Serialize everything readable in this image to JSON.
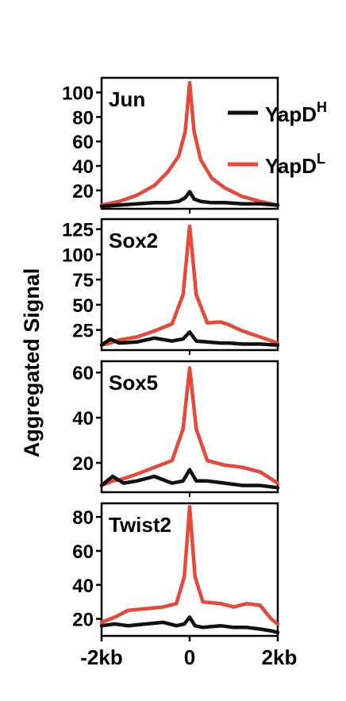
{
  "figure": {
    "ylabel": "Aggregated Signal",
    "x_ticks": [
      "-2kb",
      "0",
      "2kb"
    ],
    "legend": [
      {
        "base": "YapD",
        "sup": "H",
        "color": "#111111"
      },
      {
        "base": "YapD",
        "sup": "L",
        "color": "#e8473a"
      }
    ]
  },
  "chart_data": [
    {
      "type": "line",
      "title": "Jun",
      "x": [
        -2,
        -1.6,
        -1.2,
        -0.8,
        -0.5,
        -0.25,
        -0.1,
        0,
        0.1,
        0.25,
        0.5,
        0.8,
        1.2,
        1.6,
        2
      ],
      "ylim": [
        5,
        112
      ],
      "yticks": [
        20,
        40,
        60,
        80,
        100
      ],
      "series": [
        {
          "name": "YapDᴴ",
          "color": "#111111",
          "values": [
            7,
            8,
            9,
            10,
            10,
            11,
            14,
            19,
            13,
            11,
            10,
            10,
            9,
            9,
            8
          ]
        },
        {
          "name": "YapDᴸ",
          "color": "#e8473a",
          "values": [
            8,
            11,
            16,
            24,
            35,
            48,
            68,
            108,
            68,
            45,
            30,
            22,
            15,
            11,
            8
          ]
        }
      ]
    },
    {
      "type": "line",
      "title": "Sox2",
      "x": [
        -2,
        -1.8,
        -1.6,
        -1.2,
        -0.8,
        -0.4,
        -0.15,
        0,
        0.15,
        0.4,
        0.7,
        0.9,
        1.2,
        1.6,
        2
      ],
      "ylim": [
        5,
        135
      ],
      "yticks": [
        25,
        50,
        75,
        100,
        125
      ],
      "series": [
        {
          "name": "YapDᴴ",
          "color": "#111111",
          "values": [
            10,
            16,
            12,
            13,
            17,
            14,
            16,
            23,
            14,
            13,
            12,
            12,
            11,
            11,
            10
          ]
        },
        {
          "name": "YapDᴸ",
          "color": "#e8473a",
          "values": [
            10,
            12,
            15,
            18,
            24,
            31,
            60,
            128,
            60,
            32,
            33,
            30,
            24,
            18,
            12
          ]
        }
      ]
    },
    {
      "type": "line",
      "title": "Sox5",
      "x": [
        -2,
        -1.75,
        -1.5,
        -1.2,
        -0.8,
        -0.4,
        -0.15,
        0,
        0.15,
        0.4,
        0.8,
        1.2,
        1.6,
        2
      ],
      "ylim": [
        7,
        65
      ],
      "yticks": [
        20,
        40,
        60
      ],
      "series": [
        {
          "name": "YapDᴴ",
          "color": "#111111",
          "values": [
            10,
            14,
            11,
            12,
            14,
            11,
            12,
            17,
            12,
            12,
            11,
            10,
            10,
            9
          ]
        },
        {
          "name": "YapDᴸ",
          "color": "#e8473a",
          "values": [
            10,
            12,
            13,
            15,
            18,
            21,
            35,
            62,
            35,
            21,
            19,
            18,
            16,
            11
          ]
        }
      ]
    },
    {
      "type": "line",
      "title": "Twist2",
      "x": [
        -2,
        -1.7,
        -1.4,
        -1.0,
        -0.6,
        -0.3,
        -0.12,
        0,
        0.12,
        0.3,
        0.7,
        1.0,
        1.3,
        1.6,
        1.85,
        2
      ],
      "ylim": [
        10,
        88
      ],
      "yticks": [
        20,
        40,
        60,
        80
      ],
      "series": [
        {
          "name": "YapDᴴ",
          "color": "#111111",
          "values": [
            16,
            17,
            16,
            17,
            18,
            16,
            17,
            21,
            16,
            15,
            16,
            15,
            15,
            14,
            13,
            12
          ]
        },
        {
          "name": "YapDᴸ",
          "color": "#e8473a",
          "values": [
            18,
            21,
            25,
            26,
            27,
            29,
            45,
            86,
            45,
            30,
            29,
            27,
            29,
            28,
            20,
            17
          ]
        }
      ]
    }
  ]
}
